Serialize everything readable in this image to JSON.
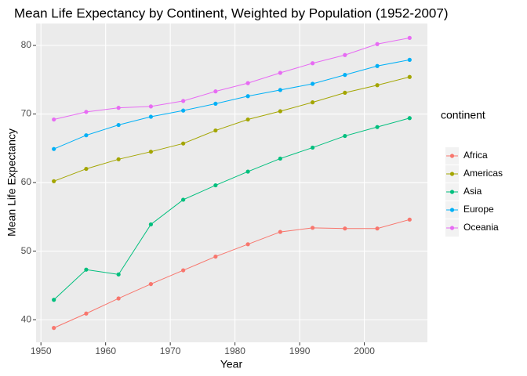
{
  "chart_data": {
    "type": "line",
    "title": "Mean Life Expectancy by Continent, Weighted by Population (1952-2007)",
    "x_label": "Year",
    "y_label": "Mean Life Expectancy",
    "legend_title": "continent",
    "x": [
      1952,
      1957,
      1962,
      1967,
      1972,
      1977,
      1982,
      1987,
      1992,
      1997,
      2002,
      2007
    ],
    "series": [
      {
        "name": "Africa",
        "color": "#F8766D",
        "values": [
          38.8,
          40.9,
          43.1,
          45.2,
          47.2,
          49.2,
          51.0,
          52.8,
          53.4,
          53.3,
          53.3,
          54.6
        ]
      },
      {
        "name": "Americas",
        "color": "#A3A500",
        "values": [
          60.2,
          62.0,
          63.4,
          64.5,
          65.7,
          67.6,
          69.2,
          70.4,
          71.7,
          73.1,
          74.2,
          75.4
        ]
      },
      {
        "name": "Asia",
        "color": "#00BF7D",
        "values": [
          42.9,
          47.3,
          46.6,
          53.9,
          57.5,
          59.6,
          61.6,
          63.5,
          65.1,
          66.8,
          68.1,
          69.4
        ]
      },
      {
        "name": "Europe",
        "color": "#00B0F6",
        "values": [
          64.9,
          66.9,
          68.4,
          69.6,
          70.5,
          71.5,
          72.6,
          73.5,
          74.4,
          75.7,
          77.0,
          77.9
        ]
      },
      {
        "name": "Oceania",
        "color": "#E76BF3",
        "values": [
          69.2,
          70.3,
          70.9,
          71.1,
          71.9,
          73.3,
          74.5,
          76.0,
          77.4,
          78.6,
          80.2,
          81.1
        ]
      }
    ],
    "xlim": [
      1949.25,
      2009.75
    ],
    "xticks": [
      1950,
      1960,
      1970,
      1980,
      1990,
      2000
    ],
    "ylim": [
      36.7,
      83.2
    ],
    "yticks": [
      40,
      50,
      60,
      70,
      80
    ],
    "grid": true,
    "legend_position": "right"
  }
}
